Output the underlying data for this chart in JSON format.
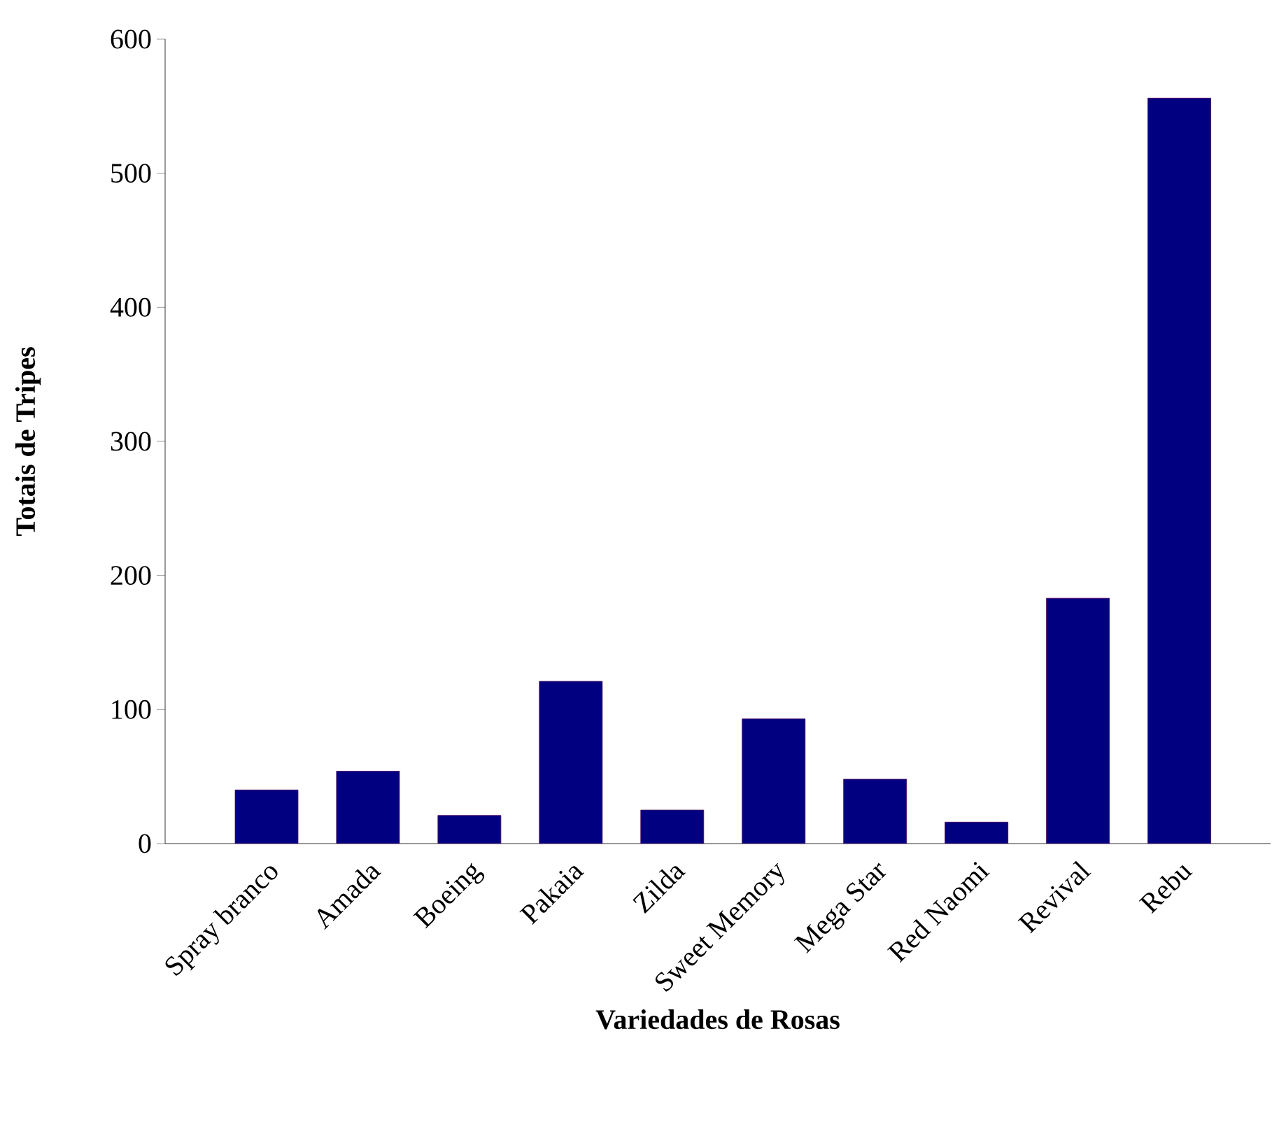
{
  "chart_data": {
    "type": "bar",
    "xlabel": "Variedades de Rosas",
    "ylabel": "Totais de Tripes",
    "categories": [
      "Spray branco",
      "Amada",
      "Boeing",
      "Pakaia",
      "Zilda",
      "Sweet Memory",
      "Mega Star",
      "Red Naomi",
      "Revival",
      "Rebu"
    ],
    "values": [
      40,
      54,
      21,
      121,
      25,
      93,
      48,
      16,
      183,
      556
    ],
    "color": "#000080",
    "ylim": [
      0,
      600
    ],
    "yticks": [
      0,
      100,
      200,
      300,
      400,
      500,
      600
    ]
  }
}
